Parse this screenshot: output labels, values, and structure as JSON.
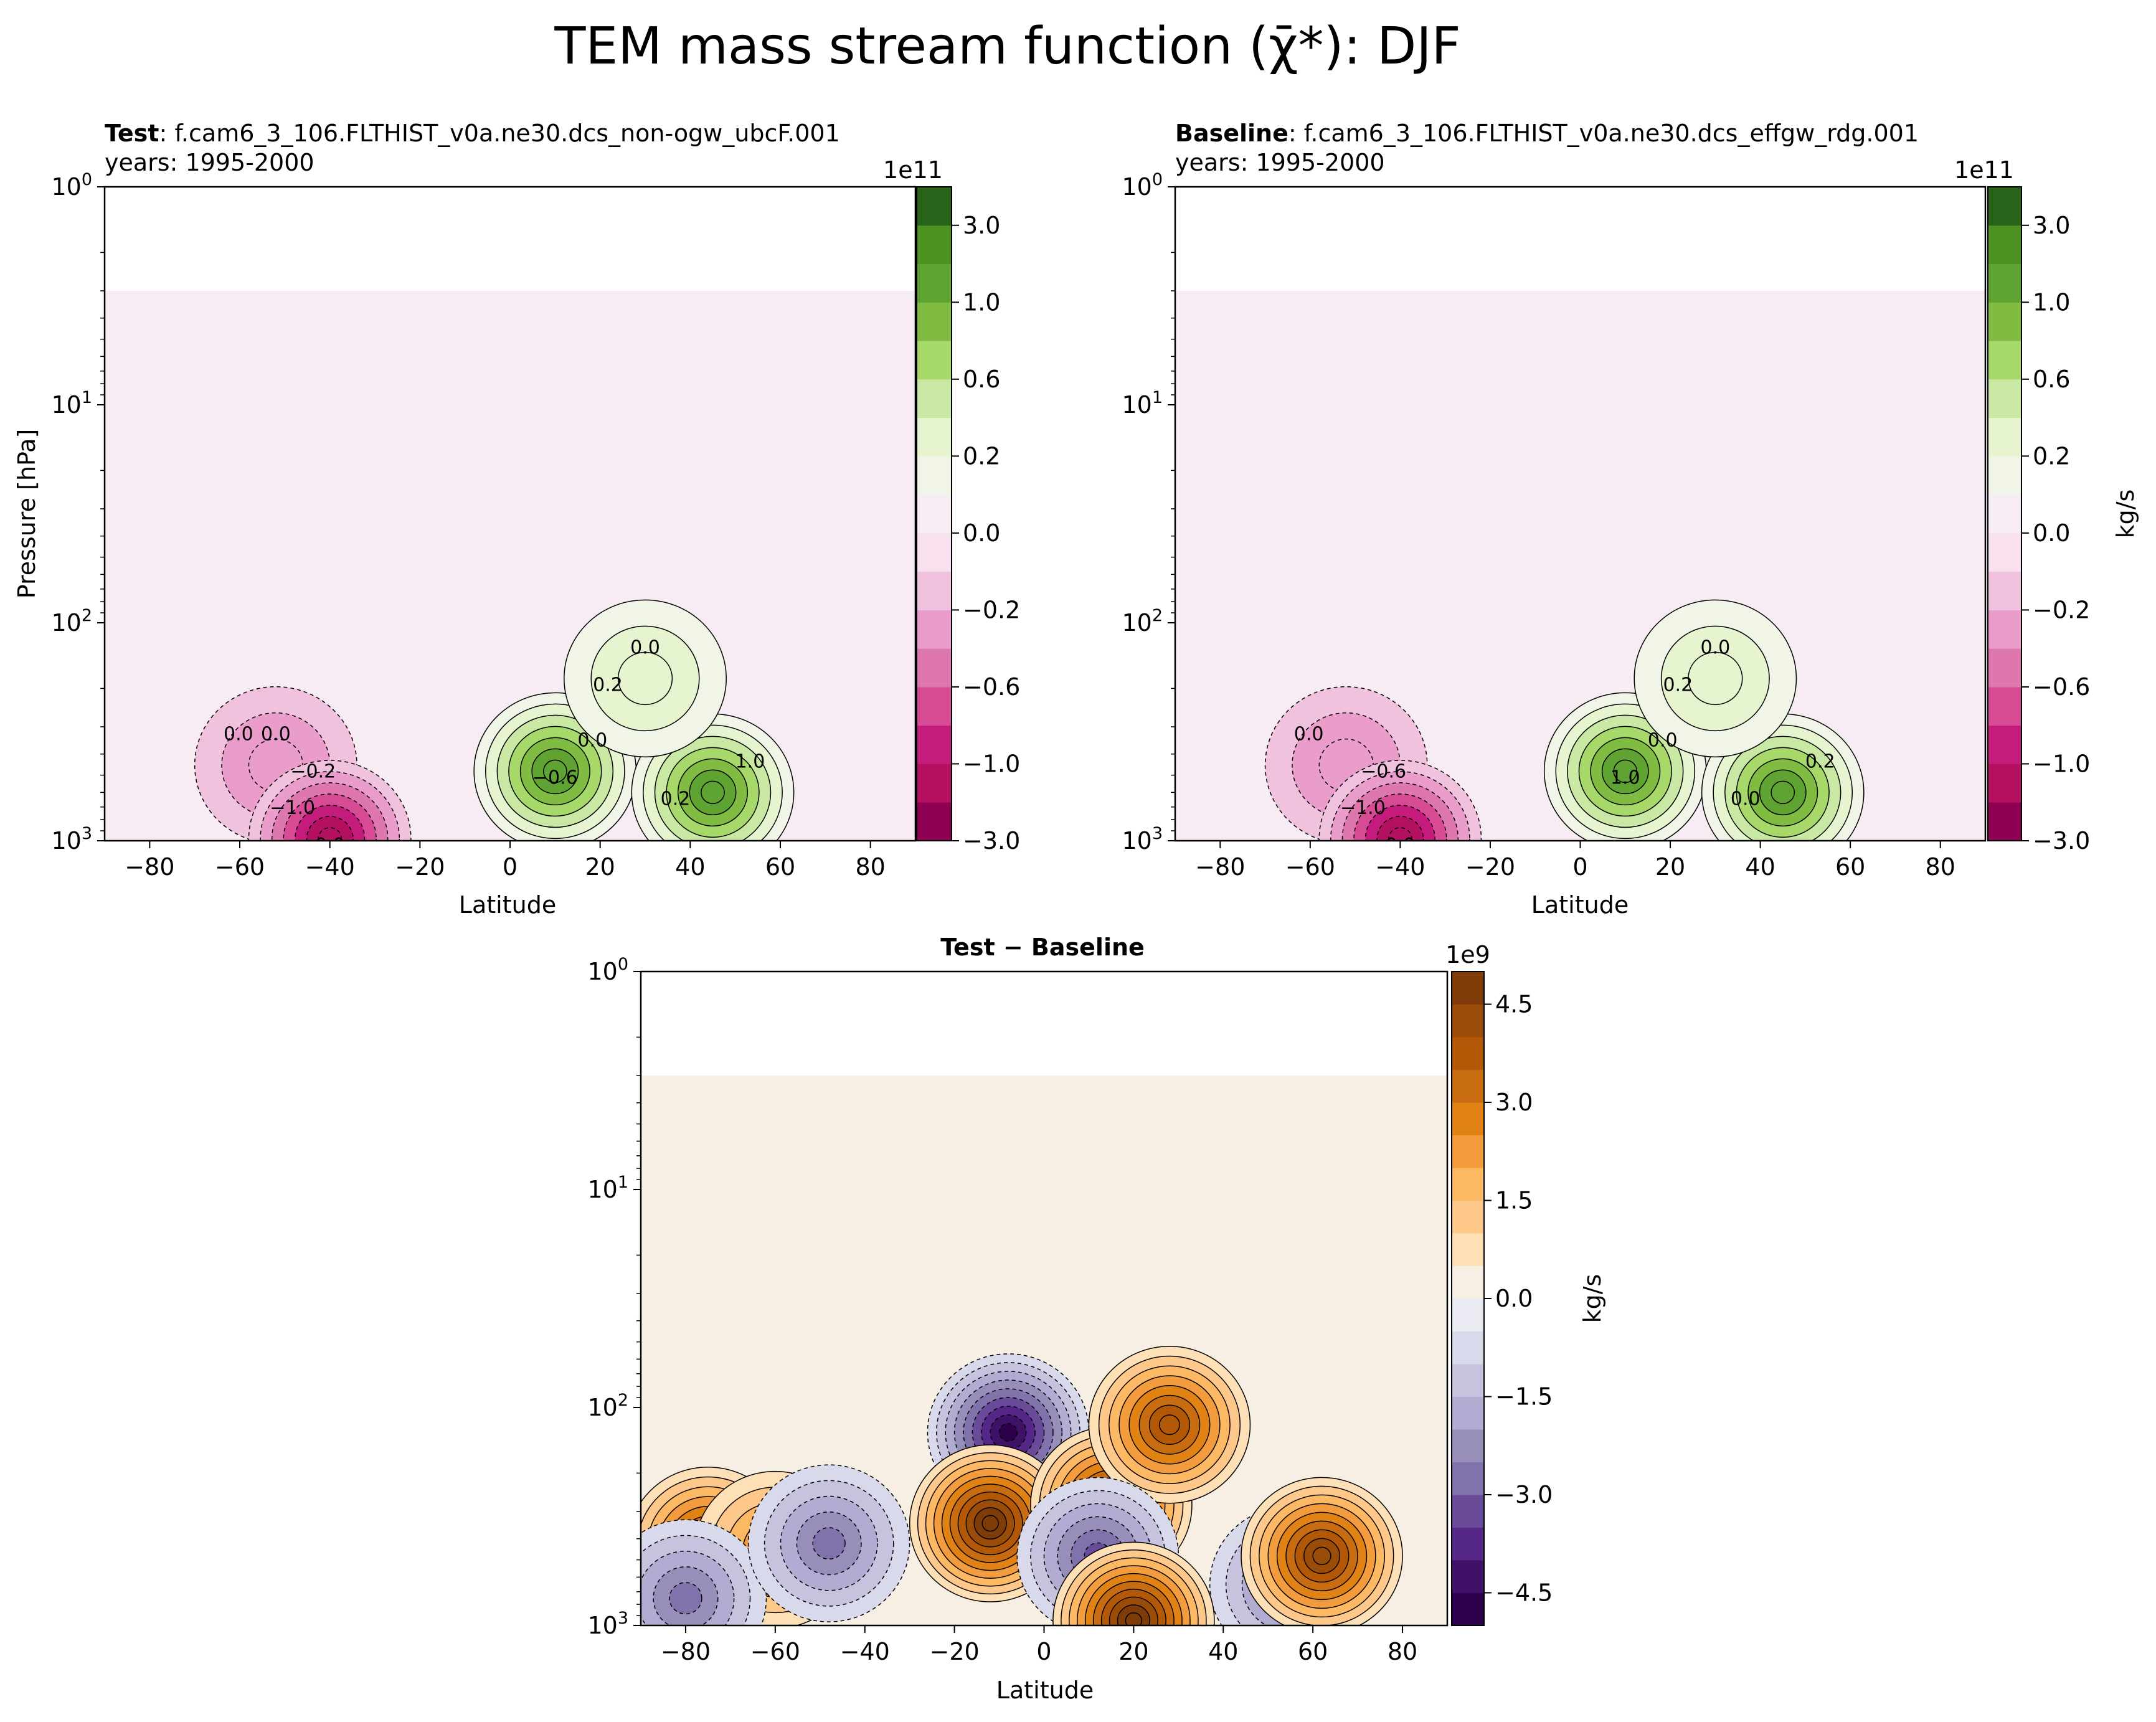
{
  "figure": {
    "suptitle": "TEM mass stream function (χ̄*): DJF"
  },
  "chart_data": [
    {
      "type": "heatmap",
      "panel": "test",
      "title_bold": "Test",
      "title_rest": ": f.cam6_3_106.FLTHIST_v0a.ne30.dcs_non-ogw_ubcF.001",
      "subtitle": "years: 1995-2000",
      "xlabel": "Latitude",
      "ylabel": "Pressure [hPa]",
      "xlim": [
        -90,
        90
      ],
      "ylim": [
        1000,
        1
      ],
      "yscale": "log",
      "xticks": [
        "−80",
        "−60",
        "−40",
        "−20",
        "0",
        "20",
        "40",
        "60",
        "80"
      ],
      "xtick_values": [
        -80,
        -60,
        -40,
        -20,
        0,
        20,
        40,
        60,
        80
      ],
      "yticks": [
        {
          "base": "10",
          "exp": "0"
        },
        {
          "base": "10",
          "exp": "1"
        },
        {
          "base": "10",
          "exp": "2"
        },
        {
          "base": "10",
          "exp": "3"
        }
      ],
      "ytick_values": [
        1,
        10,
        100,
        1000
      ],
      "data_top_hPa": 3,
      "colormap": "PiYG",
      "colorbar": {
        "offset": "1e11",
        "label": "",
        "levels": [
          -3.0,
          -1.4,
          -1.0,
          -0.8,
          -0.6,
          -0.4,
          -0.2,
          -0.1,
          0.0,
          0.1,
          0.2,
          0.4,
          0.6,
          0.8,
          1.0,
          1.4,
          3.0
        ],
        "colors": [
          "#8e0152",
          "#b3105f",
          "#c51b7d",
          "#d64b94",
          "#de77ae",
          "#ea9ccb",
          "#f1c2de",
          "#f8e0ee",
          "#f7ecf3",
          "#f0f5e8",
          "#e6f5d0",
          "#c9e8a3",
          "#a6d96a",
          "#7fbc41",
          "#5fa332",
          "#4d9221",
          "#276419"
        ],
        "tick_labels": [
          "−3.0",
          "−1.0",
          "−0.6",
          "−0.2",
          "0.0",
          "0.2",
          "0.6",
          "1.0",
          "3.0"
        ],
        "tick_values": [
          -3.0,
          -1.0,
          -0.6,
          -0.2,
          0.0,
          0.2,
          0.6,
          1.0,
          3.0
        ]
      },
      "contour_labels": [
        "0.0",
        "0.0",
        "0.0",
        "0.2",
        "0.0",
        "−0.2",
        "−1.0",
        "−0.6",
        "1.0",
        "0.2",
        "0.0"
      ],
      "features": [
        {
          "lat": -52,
          "p": 450,
          "value": -0.3
        },
        {
          "lat": -40,
          "p": 980,
          "value": -1.2
        },
        {
          "lat": 10,
          "p": 480,
          "value": 1.3
        },
        {
          "lat": 45,
          "p": 600,
          "value": 1.1
        },
        {
          "lat": 30,
          "p": 180,
          "value": 0.3
        }
      ]
    },
    {
      "type": "heatmap",
      "panel": "baseline",
      "title_bold": "Baseline",
      "title_rest": ": f.cam6_3_106.FLTHIST_v0a.ne30.dcs_effgw_rdg.001",
      "subtitle": "years: 1995-2000",
      "xlabel": "Latitude",
      "ylabel": "",
      "xlim": [
        -90,
        90
      ],
      "ylim": [
        1000,
        1
      ],
      "yscale": "log",
      "xticks": [
        "−80",
        "−60",
        "−40",
        "−20",
        "0",
        "20",
        "40",
        "60",
        "80"
      ],
      "xtick_values": [
        -80,
        -60,
        -40,
        -20,
        0,
        20,
        40,
        60,
        80
      ],
      "yticks": [
        {
          "base": "10",
          "exp": "0"
        },
        {
          "base": "10",
          "exp": "1"
        },
        {
          "base": "10",
          "exp": "2"
        },
        {
          "base": "10",
          "exp": "3"
        }
      ],
      "ytick_values": [
        1,
        10,
        100,
        1000
      ],
      "data_top_hPa": 3,
      "colormap": "PiYG",
      "colorbar": {
        "offset": "1e11",
        "label": "kg/s",
        "levels": [
          -3.0,
          -1.4,
          -1.0,
          -0.8,
          -0.6,
          -0.4,
          -0.2,
          -0.1,
          0.0,
          0.1,
          0.2,
          0.4,
          0.6,
          0.8,
          1.0,
          1.4,
          3.0
        ],
        "colors": [
          "#8e0152",
          "#b3105f",
          "#c51b7d",
          "#d64b94",
          "#de77ae",
          "#ea9ccb",
          "#f1c2de",
          "#f8e0ee",
          "#f7ecf3",
          "#f0f5e8",
          "#e6f5d0",
          "#c9e8a3",
          "#a6d96a",
          "#7fbc41",
          "#5fa332",
          "#4d9221",
          "#276419"
        ],
        "tick_labels": [
          "−3.0",
          "−1.0",
          "−0.6",
          "−0.2",
          "0.0",
          "0.2",
          "0.6",
          "1.0",
          "3.0"
        ],
        "tick_values": [
          -3.0,
          -1.0,
          -0.6,
          -0.2,
          0.0,
          0.2,
          0.6,
          1.0,
          3.0
        ]
      },
      "contour_labels": [
        "0.0",
        "0.0",
        "0.0",
        "0.0",
        "0.0",
        "−0.6",
        "−1.0",
        "1.0",
        "0.2",
        "0.2"
      ],
      "features": [
        {
          "lat": -52,
          "p": 450,
          "value": -0.3
        },
        {
          "lat": -40,
          "p": 980,
          "value": -1.2
        },
        {
          "lat": 10,
          "p": 480,
          "value": 1.3
        },
        {
          "lat": 45,
          "p": 600,
          "value": 1.1
        },
        {
          "lat": 30,
          "p": 180,
          "value": 0.3
        }
      ]
    },
    {
      "type": "heatmap",
      "panel": "difference",
      "title_bold": "Test",
      "title_rest": " − Baseline",
      "title_all_bold": true,
      "xlabel": "Latitude",
      "ylabel": "",
      "xlim": [
        -90,
        90
      ],
      "ylim": [
        1000,
        1
      ],
      "yscale": "log",
      "xticks": [
        "−80",
        "−60",
        "−40",
        "−20",
        "0",
        "20",
        "40",
        "60",
        "80"
      ],
      "xtick_values": [
        -80,
        -60,
        -40,
        -20,
        0,
        20,
        40,
        60,
        80
      ],
      "yticks": [
        {
          "base": "10",
          "exp": "0"
        },
        {
          "base": "10",
          "exp": "1"
        },
        {
          "base": "10",
          "exp": "2"
        },
        {
          "base": "10",
          "exp": "3"
        }
      ],
      "ytick_values": [
        1,
        10,
        100,
        1000
      ],
      "data_top_hPa": 3,
      "colormap": "PuOr_r",
      "colorbar": {
        "offset": "1e9",
        "label": "kg/s",
        "levels": [
          -5.0,
          -4.5,
          -4.0,
          -3.5,
          -3.0,
          -2.5,
          -2.0,
          -1.5,
          -1.0,
          -0.5,
          0.0,
          0.5,
          1.0,
          1.5,
          2.0,
          2.5,
          3.0,
          3.5,
          4.0,
          4.5,
          5.0
        ],
        "colors": [
          "#2d004b",
          "#3f1167",
          "#542788",
          "#6a4b9a",
          "#8073ac",
          "#978eba",
          "#b2abd2",
          "#c7c3df",
          "#d8daeb",
          "#e9eaf2",
          "#f7efe4",
          "#fee0b6",
          "#fdc889",
          "#fdb863",
          "#f29c3e",
          "#e08214",
          "#c76c10",
          "#b35806",
          "#9a4d08",
          "#7f3b08"
        ],
        "tick_labels": [
          "−4.5",
          "−3.0",
          "−1.5",
          "0.0",
          "1.5",
          "3.0",
          "4.5"
        ],
        "tick_values": [
          -4.5,
          -3.0,
          -1.5,
          0.0,
          1.5,
          3.0,
          4.5
        ]
      },
      "features": [
        {
          "lat": -75,
          "p": 430,
          "value": 4.0
        },
        {
          "lat": -60,
          "p": 450,
          "value": 2.5
        },
        {
          "lat": -80,
          "p": 750,
          "value": -2.5
        },
        {
          "lat": -48,
          "p": 420,
          "value": -2.5
        },
        {
          "lat": -8,
          "p": 130,
          "value": -4.5
        },
        {
          "lat": -12,
          "p": 340,
          "value": 5.0
        },
        {
          "lat": 15,
          "p": 280,
          "value": 4.5
        },
        {
          "lat": 28,
          "p": 120,
          "value": 4.0
        },
        {
          "lat": 12,
          "p": 480,
          "value": -3.0
        },
        {
          "lat": 55,
          "p": 650,
          "value": -2.5
        },
        {
          "lat": 62,
          "p": 480,
          "value": 4.5
        },
        {
          "lat": 20,
          "p": 950,
          "value": 5.0
        }
      ]
    }
  ]
}
